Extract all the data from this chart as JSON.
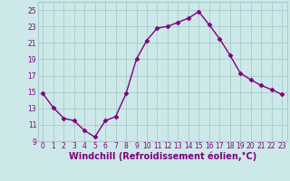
{
  "x": [
    0,
    1,
    2,
    3,
    4,
    5,
    6,
    7,
    8,
    9,
    10,
    11,
    12,
    13,
    14,
    15,
    16,
    17,
    18,
    19,
    20,
    21,
    22,
    23
  ],
  "y": [
    14.8,
    13.1,
    11.8,
    11.5,
    10.3,
    9.5,
    11.5,
    12.0,
    14.8,
    19.0,
    21.3,
    22.8,
    23.0,
    23.5,
    24.0,
    24.8,
    23.2,
    21.5,
    19.5,
    17.3,
    16.5,
    15.8,
    15.3,
    14.7
  ],
  "line_color": "#800080",
  "marker": "D",
  "marker_size": 2.5,
  "bg_color": "#cce8e8",
  "grid_color": "#aacccc",
  "xlabel": "Windchill (Refroidissement éolien,°C)",
  "xlabel_color": "#800080",
  "ylim": [
    9,
    26
  ],
  "xlim": [
    -0.5,
    23.5
  ],
  "yticks": [
    9,
    11,
    13,
    15,
    17,
    19,
    21,
    23,
    25
  ],
  "xticks": [
    0,
    1,
    2,
    3,
    4,
    5,
    6,
    7,
    8,
    9,
    10,
    11,
    12,
    13,
    14,
    15,
    16,
    17,
    18,
    19,
    20,
    21,
    22,
    23
  ],
  "tick_label_color": "#800080",
  "tick_label_size": 5.5,
  "xlabel_size": 7.0,
  "line_width": 1.0
}
